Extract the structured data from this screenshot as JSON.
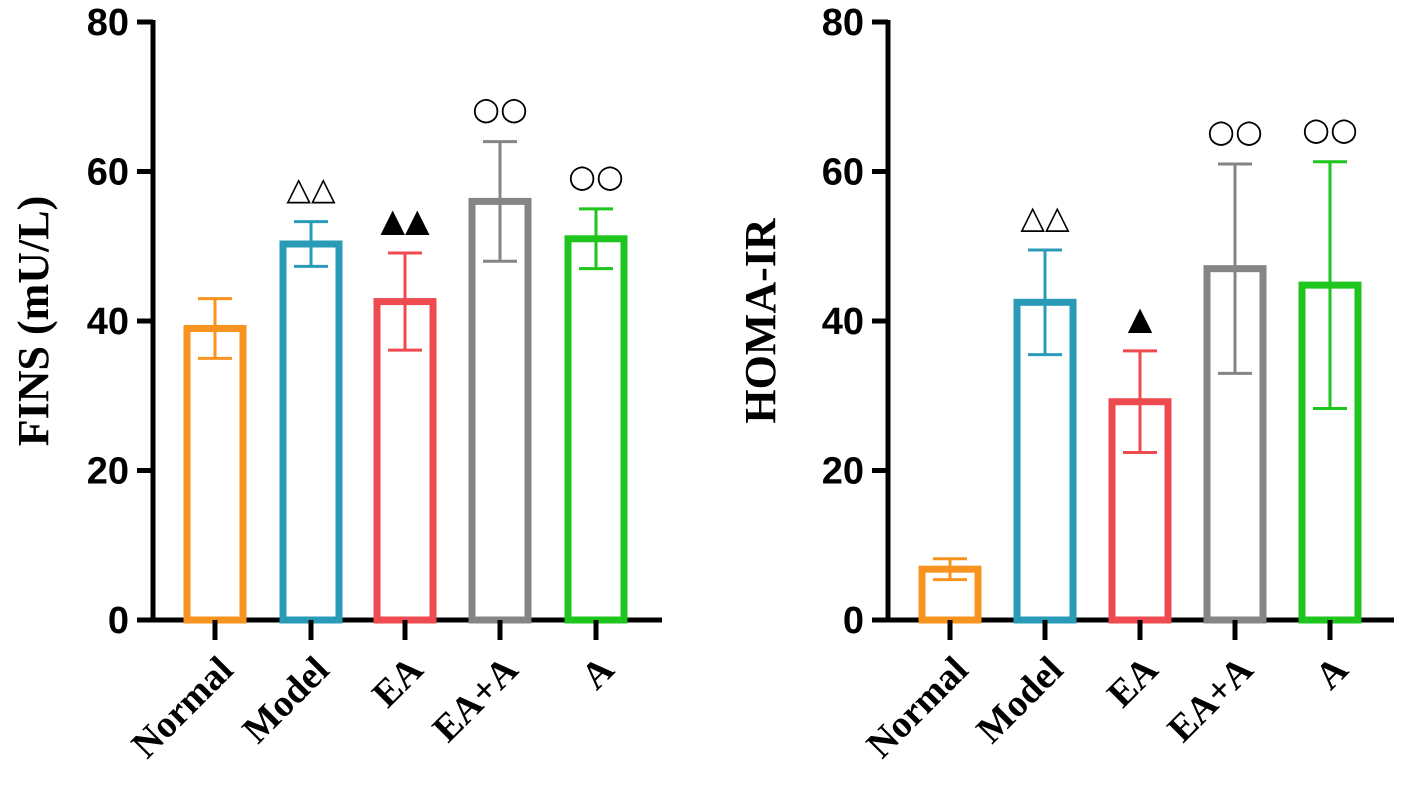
{
  "chart_data": [
    {
      "type": "bar",
      "title": "",
      "ylabel": "FINS (mU/L)",
      "xlabel": "",
      "ylim": [
        0,
        80
      ],
      "yticks": [
        0,
        20,
        40,
        60,
        80
      ],
      "categories": [
        "Normal",
        "Model",
        "EA",
        "EA+A",
        "A"
      ],
      "values": [
        39,
        50.3,
        42.6,
        56,
        51
      ],
      "errors": [
        4,
        3,
        6.5,
        8,
        4
      ],
      "colors": [
        "#f7931e",
        "#2a9bb7",
        "#ee4a4f",
        "#858585",
        "#1dc51d"
      ],
      "annotations": [
        "",
        "△△",
        "▲▲",
        "○○",
        "○○"
      ]
    },
    {
      "type": "bar",
      "title": "",
      "ylabel": "HOMA-IR",
      "xlabel": "",
      "ylim": [
        0,
        80
      ],
      "yticks": [
        0,
        20,
        40,
        60,
        80
      ],
      "categories": [
        "Normal",
        "Model",
        "EA",
        "EA+A",
        "A"
      ],
      "values": [
        6.8,
        42.5,
        29.2,
        47,
        44.8
      ],
      "errors": [
        1.4,
        7,
        6.8,
        14,
        16.5
      ],
      "colors": [
        "#f7931e",
        "#2a9bb7",
        "#ee4a4f",
        "#858585",
        "#1dc51d"
      ],
      "annotations": [
        "",
        "△△",
        "▲",
        "○○",
        "○○"
      ]
    }
  ]
}
